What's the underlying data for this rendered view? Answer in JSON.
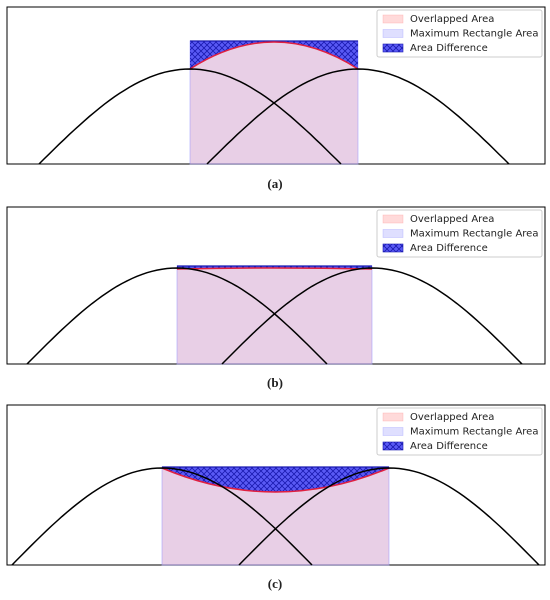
{
  "panels": [
    {
      "caption": "(a)",
      "legend": [
        "Overlapped Area",
        "Maximum Rectangle Area",
        "Area Difference"
      ]
    },
    {
      "caption": "(b)",
      "legend": [
        "Overlapped Area",
        "Maximum Rectangle Area",
        "Area Difference"
      ]
    },
    {
      "caption": "(c)",
      "legend": [
        "Overlapped Area",
        "Maximum Rectangle Area",
        "Area Difference"
      ]
    }
  ]
}
